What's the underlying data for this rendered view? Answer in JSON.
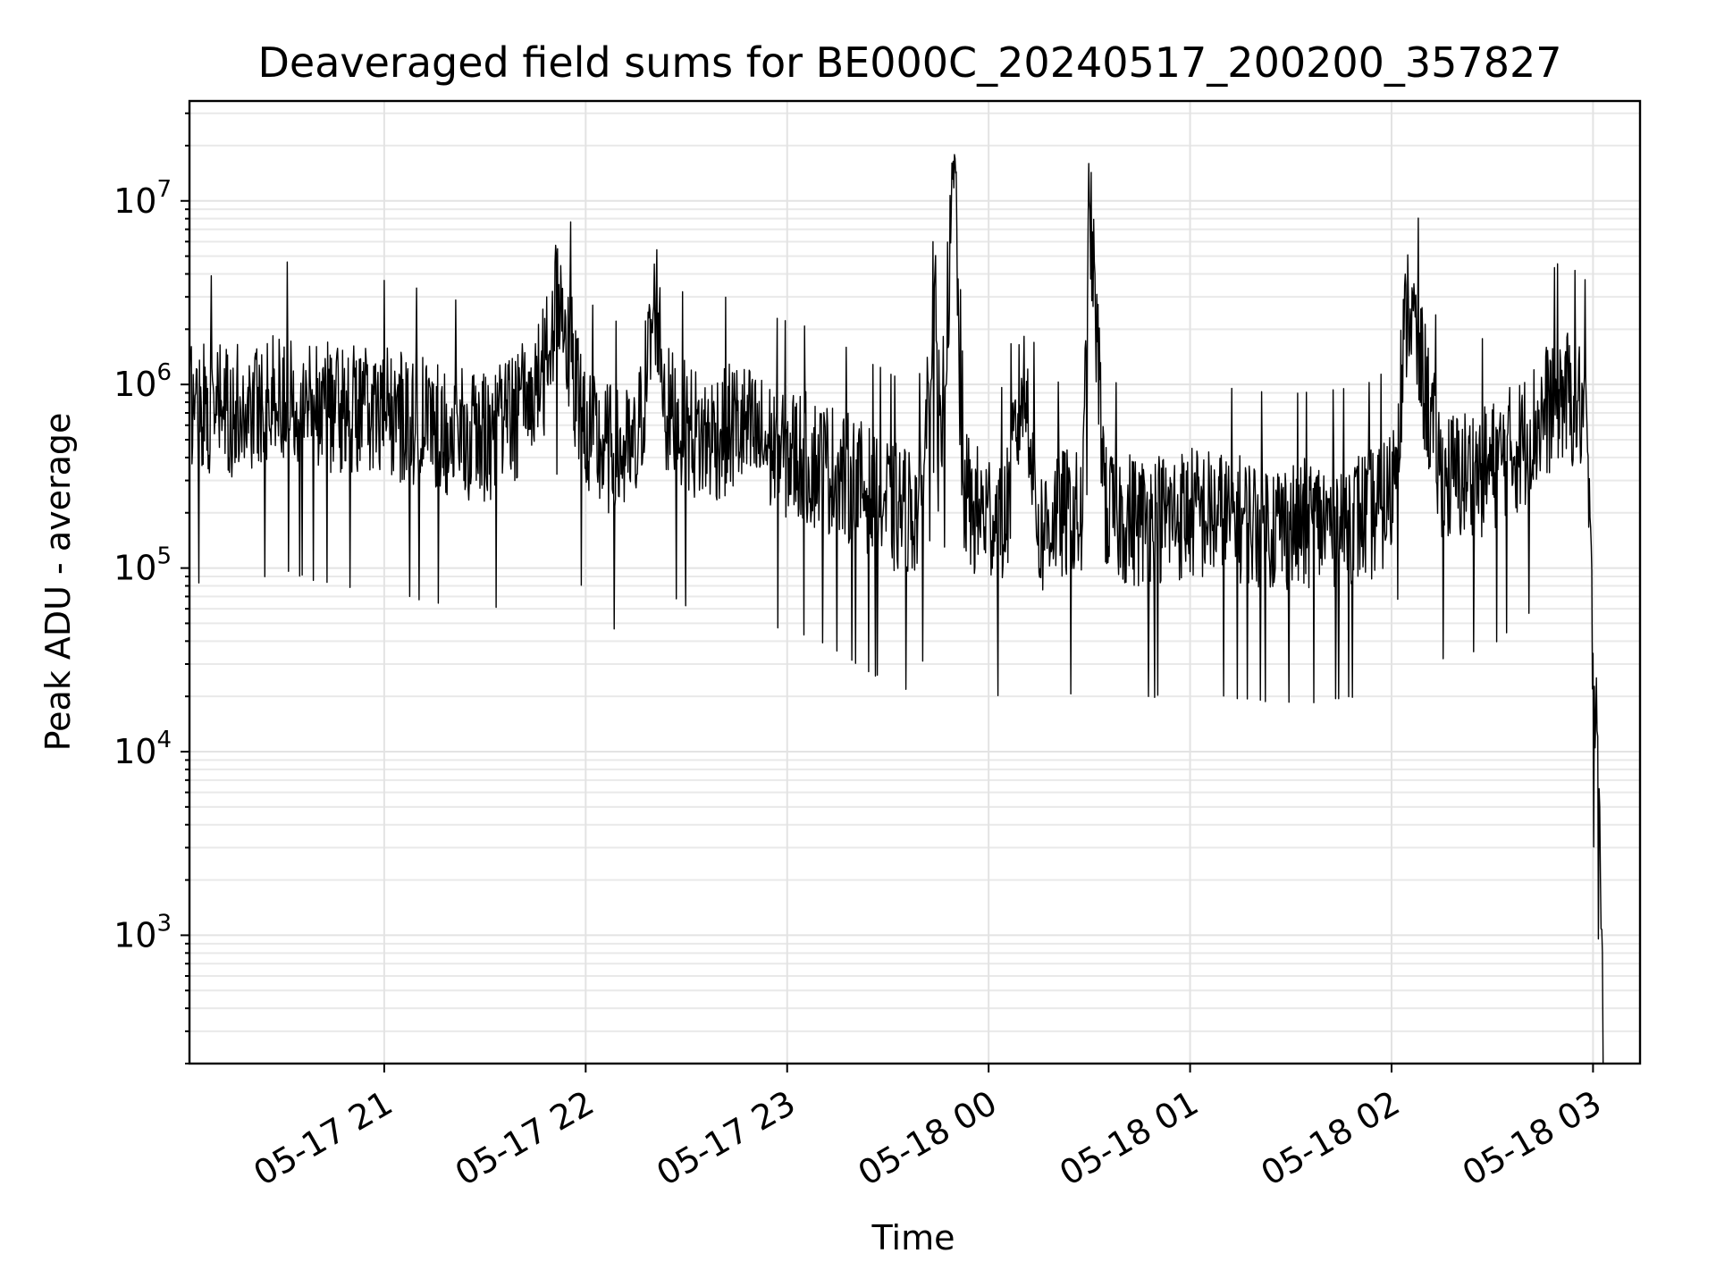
{
  "chart_data": {
    "type": "line",
    "title": "Deaveraged field sums for BE000C_20240517_200200_357827",
    "xlabel": "Time",
    "ylabel": "Peak ADU - average",
    "x_axis": {
      "kind": "datetime",
      "range": [
        "2024-05-17 20:02",
        "2024-05-18 03:14"
      ],
      "ticks": [
        {
          "value": "2024-05-17 21:00",
          "label": "05-17 21"
        },
        {
          "value": "2024-05-17 22:00",
          "label": "05-17 22"
        },
        {
          "value": "2024-05-17 23:00",
          "label": "05-17 23"
        },
        {
          "value": "2024-05-18 00:00",
          "label": "05-18 00"
        },
        {
          "value": "2024-05-18 01:00",
          "label": "05-18 01"
        },
        {
          "value": "2024-05-18 02:00",
          "label": "05-18 02"
        },
        {
          "value": "2024-05-18 03:00",
          "label": "05-18 03"
        }
      ]
    },
    "y_axis": {
      "scale": "log",
      "range": [
        200,
        35000000
      ],
      "ticks": [
        {
          "value": 1000,
          "base": "10",
          "exp": "3"
        },
        {
          "value": 10000,
          "base": "10",
          "exp": "4"
        },
        {
          "value": 100000,
          "base": "10",
          "exp": "5"
        },
        {
          "value": 1000000,
          "base": "10",
          "exp": "6"
        },
        {
          "value": 10000000,
          "base": "10",
          "exp": "7"
        }
      ]
    },
    "grid": true,
    "series": [
      {
        "color": "#000000",
        "x": [
          "2024-05-17 20:02",
          "2024-05-17 20:15",
          "2024-05-17 20:30",
          "2024-05-17 20:45",
          "2024-05-17 21:00",
          "2024-05-17 21:15",
          "2024-05-17 21:30",
          "2024-05-17 21:40",
          "2024-05-17 21:48",
          "2024-05-17 21:52",
          "2024-05-17 21:57",
          "2024-05-17 22:00",
          "2024-05-17 22:04",
          "2024-05-17 22:15",
          "2024-05-17 22:21",
          "2024-05-17 22:24",
          "2024-05-17 22:35",
          "2024-05-17 22:45",
          "2024-05-17 22:55",
          "2024-05-17 23:05",
          "2024-05-17 23:15",
          "2024-05-17 23:25",
          "2024-05-17 23:35",
          "2024-05-17 23:40",
          "2024-05-17 23:44",
          "2024-05-17 23:45",
          "2024-05-17 23:50",
          "2024-05-17 23:52",
          "2024-05-17 23:55",
          "2024-05-18 00:00",
          "2024-05-18 00:05",
          "2024-05-18 00:10",
          "2024-05-18 00:12",
          "2024-05-18 00:15",
          "2024-05-18 00:20",
          "2024-05-18 00:28",
          "2024-05-18 00:30",
          "2024-05-18 00:35",
          "2024-05-18 00:45",
          "2024-05-18 01:00",
          "2024-05-18 01:15",
          "2024-05-18 01:30",
          "2024-05-18 01:45",
          "2024-05-18 01:55",
          "2024-05-18 02:00",
          "2024-05-18 02:05",
          "2024-05-18 02:15",
          "2024-05-18 02:30",
          "2024-05-18 02:40",
          "2024-05-18 02:50",
          "2024-05-18 02:55",
          "2024-05-18 02:58",
          "2024-05-18 03:00",
          "2024-05-18 03:01",
          "2024-05-18 03:02",
          "2024-05-18 03:03"
        ],
        "y": [
          800000,
          700000,
          900000,
          750000,
          700000,
          600000,
          500000,
          700000,
          1200000,
          3500000,
          1000000,
          600000,
          450000,
          400000,
          3000000,
          700000,
          500000,
          600000,
          450000,
          400000,
          330000,
          250000,
          200000,
          220000,
          4000000,
          250000,
          17000000,
          300000,
          200000,
          200000,
          180000,
          1000000,
          700000,
          150000,
          200000,
          180000,
          10000000,
          200000,
          180000,
          200000,
          180000,
          170000,
          180000,
          200000,
          250000,
          3000000,
          300000,
          350000,
          500000,
          900000,
          800000,
          700000,
          30000,
          20000,
          5000,
          200
        ]
      }
    ]
  }
}
